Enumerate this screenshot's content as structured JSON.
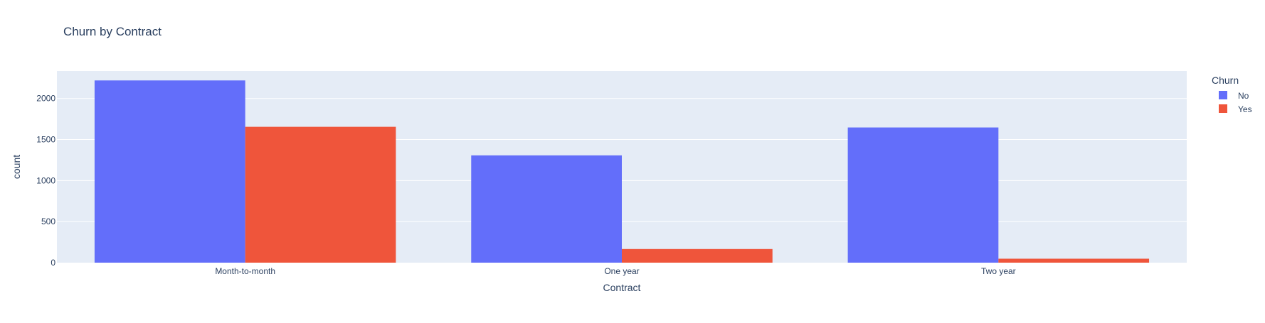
{
  "chart_data": {
    "type": "bar",
    "barmode": "group",
    "title": "Churn by Contract",
    "xlabel": "Contract",
    "ylabel": "count",
    "categories": [
      "Month-to-month",
      "One year",
      "Two year"
    ],
    "series": [
      {
        "name": "No",
        "values": [
          2220,
          1307,
          1647
        ],
        "color": "#636efa"
      },
      {
        "name": "Yes",
        "values": [
          1655,
          166,
          48
        ],
        "color": "#ef553b"
      }
    ],
    "ylim": [
      0,
      2335
    ],
    "yticks": [
      0,
      500,
      1000,
      1500,
      2000
    ],
    "legend": {
      "title": "Churn",
      "placement": "right"
    },
    "grid": true,
    "plot_background": "#e5ecf6",
    "gridline_color": "#ffffff"
  }
}
